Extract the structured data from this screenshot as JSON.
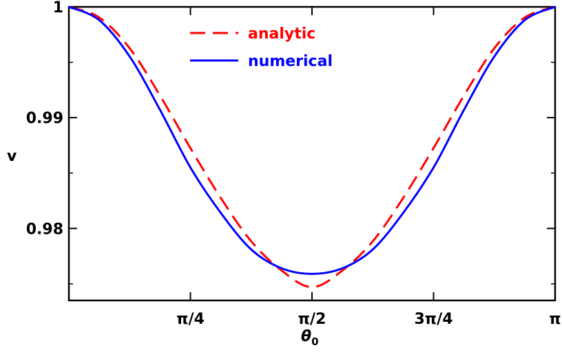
{
  "chart_data": {
    "type": "line",
    "xlabel": "θ",
    "xlabel_sub": "0",
    "ylabel": "v",
    "xlim": [
      0,
      3.14159
    ],
    "ylim": [
      0.9735,
      1.0
    ],
    "x_ticks": [
      {
        "value": 0.785398,
        "label": "π/4"
      },
      {
        "value": 1.570796,
        "label": "π/2"
      },
      {
        "value": 2.356194,
        "label": "3π/4"
      },
      {
        "value": 3.141593,
        "label": "π"
      }
    ],
    "y_ticks": [
      {
        "value": 0.98,
        "label": "0.98"
      },
      {
        "value": 0.99,
        "label": "0.99"
      },
      {
        "value": 1.0,
        "label": "1"
      }
    ],
    "legend_position": "top-center",
    "series": [
      {
        "name": "analytic",
        "color": "#ff0000",
        "dash": "dashed",
        "x": [
          0,
          0.19635,
          0.392699,
          0.589049,
          0.785398,
          0.981748,
          1.178097,
          1.374447,
          1.570796,
          1.767146,
          1.963495,
          2.159845,
          2.356194,
          2.552544,
          2.748894,
          2.945243,
          3.141593
        ],
        "values": [
          1.0,
          0.99904,
          0.99627,
          0.99199,
          0.98725,
          0.98275,
          0.97884,
          0.9762,
          0.9747,
          0.9762,
          0.97884,
          0.98275,
          0.98725,
          0.99199,
          0.99627,
          0.99904,
          1.0
        ]
      },
      {
        "name": "numerical",
        "color": "#0000ff",
        "dash": "solid",
        "x": [
          0,
          0.19635,
          0.392699,
          0.589049,
          0.785398,
          0.981748,
          1.178097,
          1.374447,
          1.570796,
          1.767146,
          1.963495,
          2.159845,
          2.356194,
          2.552544,
          2.748894,
          2.945243,
          3.141593
        ],
        "values": [
          1.0,
          0.9988,
          0.99552,
          0.9907,
          0.9855,
          0.9814,
          0.9781,
          0.9764,
          0.9759,
          0.9764,
          0.9781,
          0.9814,
          0.9855,
          0.9907,
          0.99552,
          0.9988,
          1.0
        ]
      }
    ]
  }
}
